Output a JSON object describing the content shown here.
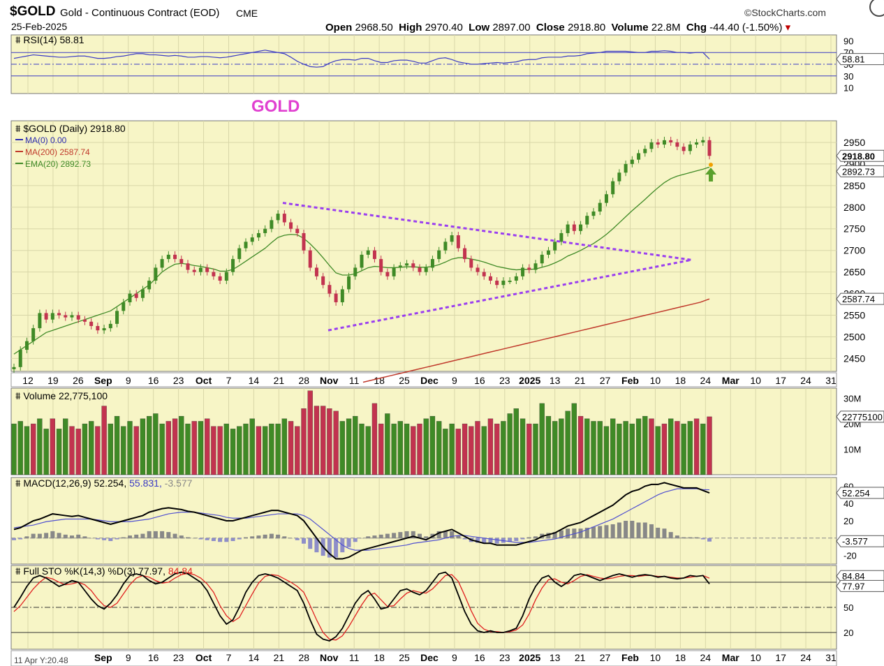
{
  "header": {
    "symbol": "$GOLD",
    "name": "Gold - Continuous Contract (EOD)",
    "exchange": "CME",
    "date": "25-Feb-2025",
    "source": "©StockCharts.com",
    "open_label": "Open",
    "open": "2968.50",
    "high_label": "High",
    "high": "2970.40",
    "low_label": "Low",
    "low": "2897.00",
    "close_label": "Close",
    "close": "2918.80",
    "volume_label": "Volume",
    "volume": "22.8M",
    "chg_label": "Chg",
    "chg": "-44.40 (-1.50%)"
  },
  "colors": {
    "panel_bg": "#f7f5c6",
    "up": "#3f8a26",
    "down": "#c2334f",
    "ema": "#3f8a26",
    "ma200": "#c0392b",
    "rsi": "#3a3ac4",
    "trend": "#9a3ef0",
    "annotation": "#e040d0"
  },
  "chart_data": [
    {
      "type": "candlestick",
      "title": "$GOLD (Daily) 2918.80",
      "annotation": "GOLD",
      "x_ticks": [
        "12",
        "19",
        "26",
        "Sep",
        "9",
        "16",
        "23",
        "Oct",
        "7",
        "14",
        "21",
        "28",
        "Nov",
        "11",
        "18",
        "25",
        "Dec",
        "9",
        "16",
        "23",
        "2025",
        "13",
        "21",
        "27",
        "Feb",
        "10",
        "18",
        "24",
        "Mar",
        "10",
        "17",
        "24",
        "31"
      ],
      "y_ticks": [
        2450,
        2500,
        2550,
        2600,
        2650,
        2700,
        2750,
        2800,
        2850,
        2900,
        2950
      ],
      "ylim": [
        2420,
        3000
      ],
      "legend": [
        "MA(0) 0.00",
        "MA(200) 2587.74",
        "EMA(20) 2892.73"
      ],
      "last_labels": {
        "close": "2918.80",
        "ema20": "2892.73",
        "ma200": "2587.74"
      },
      "close_series": [
        2430,
        2470,
        2490,
        2520,
        2555,
        2540,
        2555,
        2550,
        2545,
        2550,
        2540,
        2535,
        2525,
        2515,
        2520,
        2530,
        2560,
        2580,
        2600,
        2590,
        2610,
        2630,
        2660,
        2680,
        2690,
        2680,
        2670,
        2655,
        2650,
        2660,
        2650,
        2640,
        2630,
        2650,
        2680,
        2705,
        2720,
        2730,
        2740,
        2750,
        2770,
        2785,
        2765,
        2750,
        2740,
        2700,
        2660,
        2640,
        2620,
        2600,
        2580,
        2610,
        2640,
        2660,
        2690,
        2700,
        2680,
        2650,
        2640,
        2660,
        2665,
        2670,
        2660,
        2650,
        2660,
        2680,
        2700,
        2720,
        2735,
        2705,
        2680,
        2660,
        2650,
        2640,
        2630,
        2620,
        2630,
        2630,
        2640,
        2660,
        2655,
        2670,
        2690,
        2700,
        2720,
        2740,
        2760,
        2745,
        2760,
        2780,
        2790,
        2810,
        2830,
        2860,
        2880,
        2900,
        2910,
        2925,
        2935,
        2950,
        2945,
        2955,
        2950,
        2940,
        2930,
        2945,
        2950,
        2955,
        2918.8
      ],
      "ema20": [
        2460,
        2470,
        2480,
        2490,
        2500,
        2510,
        2515,
        2520,
        2525,
        2530,
        2535,
        2540,
        2545,
        2550,
        2555,
        2560,
        2570,
        2580,
        2590,
        2600,
        2610,
        2620,
        2635,
        2650,
        2660,
        2668,
        2670,
        2668,
        2665,
        2663,
        2660,
        2657,
        2652,
        2652,
        2656,
        2665,
        2675,
        2685,
        2695,
        2705,
        2718,
        2730,
        2735,
        2737,
        2736,
        2728,
        2715,
        2700,
        2683,
        2665,
        2648,
        2643,
        2643,
        2646,
        2653,
        2660,
        2663,
        2662,
        2660,
        2660,
        2661,
        2662,
        2662,
        2661,
        2661,
        2663,
        2667,
        2673,
        2680,
        2683,
        2683,
        2680,
        2677,
        2673,
        2668,
        2663,
        2660,
        2657,
        2655,
        2656,
        2656,
        2657,
        2661,
        2665,
        2671,
        2678,
        2687,
        2693,
        2700,
        2708,
        2716,
        2726,
        2737,
        2750,
        2764,
        2778,
        2792,
        2805,
        2818,
        2832,
        2845,
        2857,
        2866,
        2872,
        2876,
        2880,
        2884,
        2888,
        2892.73
      ],
      "ma200": [
        2395,
        2400,
        2405,
        2410,
        2415,
        2420,
        2425,
        2430,
        2435,
        2440,
        2445,
        2450,
        2455,
        2460,
        2465,
        2470,
        2475,
        2480,
        2485,
        2490,
        2495,
        2500,
        2505,
        2510,
        2515,
        2520,
        2525,
        2530,
        2535,
        2540,
        2545,
        2550,
        2555,
        2560,
        2565,
        2570,
        2575,
        2580,
        2587.74
      ],
      "trendlines": [
        {
          "from": [
            0,
            2810
          ],
          "to": [
            1,
            2678
          ]
        },
        {
          "from": [
            0,
            2515
          ],
          "to": [
            1,
            2678
          ]
        }
      ]
    },
    {
      "type": "line",
      "title": "RSI(14) 58.81",
      "y_ticks": [
        10,
        30,
        50,
        70,
        90
      ],
      "ylim": [
        0,
        100
      ],
      "last_label": "58.81",
      "values": [
        60,
        62,
        64,
        66,
        65,
        64,
        63,
        62,
        62,
        63,
        64,
        64,
        62,
        60,
        60,
        61,
        63,
        64,
        66,
        68,
        68,
        66,
        66,
        65,
        64,
        65,
        64,
        62,
        62,
        63,
        63,
        62,
        61,
        62,
        64,
        66,
        68,
        70,
        72,
        74,
        72,
        70,
        68,
        62,
        55,
        50,
        46,
        45,
        46,
        52,
        56,
        58,
        58,
        57,
        60,
        60,
        56,
        53,
        53,
        56,
        57,
        57,
        55,
        52,
        52,
        56,
        60,
        61,
        58,
        54,
        52,
        50,
        50,
        51,
        52,
        53,
        52,
        53,
        54,
        57,
        58,
        58,
        61,
        62,
        62,
        62,
        64,
        64,
        65,
        68,
        69,
        70,
        72,
        72,
        72,
        72,
        71,
        70,
        70,
        72,
        72,
        73,
        72,
        70,
        70,
        69,
        70,
        70,
        58.81
      ]
    },
    {
      "type": "bar",
      "title": "Volume 22,775,100",
      "y_ticks": [
        "10M",
        "20M",
        "30M"
      ],
      "ylim": [
        0,
        34
      ],
      "last_label": "22775100",
      "values": [
        20,
        21,
        19,
        20,
        22,
        18,
        22,
        18,
        22,
        19,
        18,
        20,
        21,
        19,
        27,
        20,
        23,
        19,
        21,
        19,
        22,
        23,
        24,
        20,
        21,
        22,
        23,
        20,
        21,
        21,
        22,
        19,
        19,
        20,
        18,
        19,
        20,
        22,
        19,
        19,
        20,
        20,
        22,
        21,
        19,
        26,
        33,
        27,
        27,
        26,
        25,
        21,
        22,
        23,
        20,
        19,
        28,
        20,
        24,
        20,
        21,
        20,
        19,
        20,
        22,
        23,
        21,
        18,
        20,
        18,
        20,
        19,
        21,
        19,
        22,
        20,
        21,
        24,
        26,
        22,
        20,
        20,
        28,
        23,
        21,
        22,
        25,
        28,
        23,
        22,
        21,
        21,
        19,
        22,
        20,
        21,
        20,
        22,
        23,
        22,
        19,
        20,
        22,
        21,
        20,
        21,
        22,
        20,
        22.78
      ],
      "up": [
        1,
        1,
        1,
        0,
        1,
        1,
        0,
        1,
        1,
        0,
        0,
        1,
        1,
        0,
        0,
        1,
        1,
        1,
        1,
        0,
        1,
        1,
        1,
        1,
        0,
        0,
        1,
        1,
        0,
        1,
        0,
        0,
        0,
        1,
        1,
        1,
        1,
        1,
        0,
        1,
        1,
        1,
        1,
        0,
        0,
        0,
        0,
        0,
        0,
        0,
        0,
        1,
        1,
        1,
        1,
        1,
        0,
        0,
        1,
        1,
        1,
        1,
        0,
        0,
        1,
        1,
        1,
        1,
        1,
        0,
        0,
        0,
        0,
        1,
        0,
        0,
        1,
        1,
        1,
        1,
        0,
        1,
        1,
        1,
        1,
        1,
        1,
        1,
        0,
        1,
        1,
        1,
        1,
        1,
        1,
        1,
        1,
        1,
        1,
        0,
        1,
        0,
        1,
        0,
        1,
        1,
        0,
        1,
        0
      ]
    },
    {
      "type": "line",
      "title": "MACD(12,26,9)",
      "labels": {
        "macd": "52.254",
        "signal": "55.831",
        "hist": "-3.577"
      },
      "y_ticks": [
        -20,
        0,
        20,
        40,
        60
      ],
      "ylim": [
        -30,
        70
      ],
      "macd": [
        10,
        12,
        16,
        20,
        22,
        25,
        28,
        27,
        26,
        25,
        26,
        24,
        22,
        20,
        18,
        16,
        18,
        20,
        22,
        24,
        26,
        30,
        32,
        34,
        35,
        34,
        33,
        31,
        30,
        28,
        26,
        24,
        22,
        20,
        20,
        22,
        24,
        26,
        28,
        30,
        32,
        32,
        30,
        28,
        26,
        20,
        10,
        0,
        -10,
        -18,
        -24,
        -24,
        -22,
        -18,
        -14,
        -12,
        -10,
        -8,
        -6,
        -4,
        -2,
        0,
        2,
        0,
        -2,
        2,
        6,
        8,
        10,
        6,
        2,
        -2,
        -4,
        -6,
        -6,
        -8,
        -8,
        -8,
        -8,
        -6,
        -4,
        -2,
        2,
        4,
        6,
        10,
        14,
        16,
        18,
        22,
        26,
        30,
        34,
        38,
        44,
        50,
        54,
        56,
        60,
        62,
        62,
        64,
        62,
        60,
        58,
        58,
        58,
        55,
        52.254
      ],
      "signal": [
        12,
        13,
        14,
        15,
        17,
        19,
        20,
        21,
        22,
        22,
        22,
        22,
        22,
        21,
        20,
        19,
        19,
        19,
        19,
        20,
        21,
        22,
        24,
        26,
        28,
        29,
        30,
        30,
        30,
        29,
        28,
        27,
        26,
        24,
        23,
        23,
        23,
        24,
        25,
        26,
        27,
        28,
        28,
        28,
        28,
        26,
        22,
        16,
        10,
        4,
        -2,
        -8,
        -12,
        -14,
        -14,
        -14,
        -13,
        -12,
        -11,
        -10,
        -9,
        -8,
        -6,
        -5,
        -4,
        -3,
        -2,
        0,
        2,
        3,
        3,
        2,
        1,
        0,
        -1,
        -2,
        -3,
        -4,
        -5,
        -5,
        -5,
        -4,
        -3,
        -2,
        -1,
        1,
        3,
        5,
        7,
        10,
        13,
        16,
        19,
        22,
        26,
        30,
        34,
        38,
        42,
        46,
        50,
        53,
        55,
        57,
        57,
        57,
        57,
        56,
        55.831
      ]
    },
    {
      "type": "line",
      "title": "Full STO %K(14,3) %D(3)",
      "labels": {
        "k": "77.97",
        "d": "84.84"
      },
      "y_ticks": [
        20,
        50,
        80
      ],
      "ylim": [
        0,
        100
      ],
      "k": [
        50,
        62,
        75,
        85,
        88,
        85,
        80,
        75,
        78,
        82,
        80,
        70,
        60,
        52,
        48,
        55,
        65,
        78,
        88,
        90,
        88,
        82,
        78,
        80,
        85,
        90,
        92,
        90,
        85,
        80,
        70,
        55,
        40,
        30,
        35,
        50,
        68,
        80,
        88,
        90,
        88,
        85,
        80,
        75,
        70,
        55,
        35,
        18,
        12,
        10,
        15,
        25,
        40,
        55,
        65,
        70,
        60,
        48,
        50,
        60,
        70,
        72,
        68,
        65,
        70,
        80,
        90,
        92,
        85,
        65,
        45,
        30,
        22,
        20,
        22,
        20,
        20,
        22,
        25,
        40,
        60,
        75,
        85,
        88,
        80,
        75,
        80,
        88,
        90,
        88,
        85,
        82,
        85,
        88,
        90,
        88,
        86,
        88,
        89,
        88,
        86,
        87,
        85,
        84,
        85,
        88,
        87,
        88,
        77.97
      ],
      "d": [
        45,
        52,
        62,
        72,
        80,
        86,
        84,
        80,
        77,
        78,
        80,
        77,
        70,
        60,
        52,
        50,
        55,
        66,
        77,
        85,
        88,
        86,
        82,
        79,
        80,
        85,
        89,
        91,
        89,
        85,
        78,
        68,
        52,
        40,
        33,
        38,
        52,
        66,
        79,
        87,
        89,
        88,
        84,
        80,
        75,
        68,
        52,
        35,
        20,
        12,
        11,
        16,
        27,
        40,
        53,
        64,
        67,
        59,
        51,
        52,
        60,
        67,
        70,
        68,
        67,
        72,
        80,
        88,
        89,
        81,
        64,
        46,
        31,
        24,
        21,
        21,
        20,
        21,
        23,
        29,
        42,
        59,
        73,
        83,
        84,
        80,
        78,
        82,
        87,
        89,
        87,
        85,
        84,
        85,
        87,
        88,
        88,
        87,
        88,
        88,
        87,
        87,
        86,
        85,
        85,
        86,
        87,
        88,
        84.84
      ],
      "bottom_label": "11 Apr Y:20.48"
    }
  ]
}
